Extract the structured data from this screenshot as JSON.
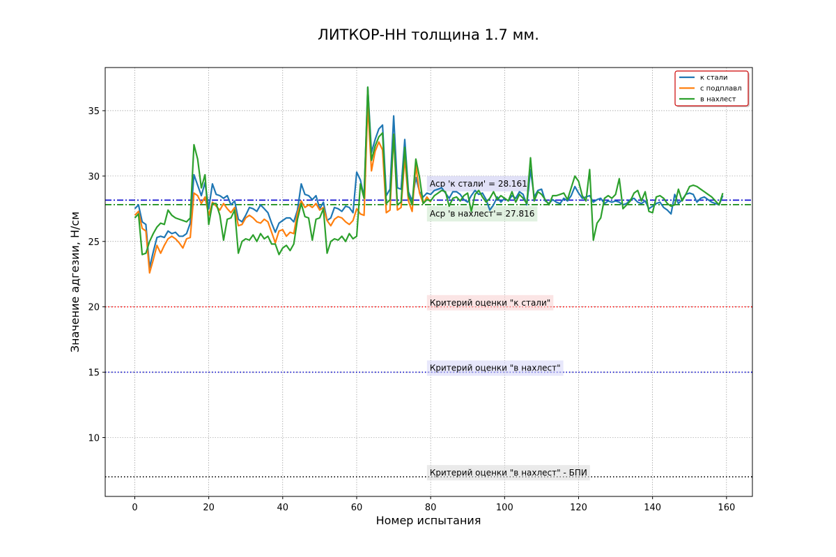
{
  "chart_data": {
    "type": "line",
    "title": "ЛИТКОР-НН толщина 1.7 мм.",
    "xlabel": "Номер испытания",
    "ylabel": "Значение адгезии, Н/см",
    "xlim": [
      -8,
      167
    ],
    "ylim": [
      5.5,
      38.3
    ],
    "xticks": [
      0,
      20,
      40,
      60,
      80,
      100,
      120,
      140,
      160
    ],
    "yticks": [
      10,
      15,
      20,
      25,
      30,
      35
    ],
    "grid": true,
    "legend_position": "top-right",
    "colors": {
      "k_stali": "#1f77b4",
      "s_podplavl": "#ff7f0e",
      "v_nakhlest": "#2ca02c",
      "legend_border": "#cc0000"
    },
    "series": [
      {
        "name": "к стали",
        "color": "#1f77b4",
        "x": [
          0,
          1,
          2,
          3,
          4,
          5,
          6,
          7,
          8,
          9,
          10,
          11,
          12,
          13,
          14,
          15,
          16,
          17,
          18,
          19,
          20,
          21,
          22,
          23,
          24,
          25,
          26,
          27,
          28,
          29,
          30,
          31,
          32,
          33,
          34,
          35,
          36,
          37,
          38,
          39,
          40,
          41,
          42,
          43,
          44,
          45,
          46,
          47,
          48,
          49,
          50,
          51,
          52,
          53,
          54,
          55,
          56,
          57,
          58,
          59,
          60,
          61,
          62,
          63,
          64,
          65,
          66,
          67,
          68,
          69,
          70,
          71,
          72,
          73,
          74,
          75,
          76,
          77,
          78,
          79,
          80,
          81,
          82,
          83,
          84,
          85,
          86,
          87,
          88,
          89,
          90,
          91,
          92,
          93,
          94,
          95,
          96,
          97,
          98,
          99,
          100,
          101,
          102,
          103,
          104,
          105,
          106,
          107,
          108,
          109,
          110,
          111,
          112,
          113,
          114,
          115,
          116,
          117,
          118,
          119,
          120,
          121,
          122,
          123,
          124,
          125,
          126,
          127,
          128,
          129,
          130,
          131,
          132,
          133,
          134,
          135,
          136,
          137,
          138,
          139,
          140,
          141,
          142,
          143,
          144,
          145,
          146,
          147,
          148,
          149,
          150,
          151,
          152,
          153,
          154,
          155,
          156,
          157,
          158,
          159
        ],
        "values": [
          27.5,
          27.8,
          26.5,
          26.3,
          23.0,
          24.2,
          25.3,
          25.4,
          25.3,
          25.8,
          25.6,
          25.7,
          25.4,
          25.4,
          25.6,
          26.4,
          30.1,
          29.3,
          28.5,
          29.5,
          27.5,
          29.4,
          28.6,
          28.5,
          28.3,
          28.5,
          27.8,
          28.1,
          26.7,
          26.5,
          27.0,
          27.6,
          27.5,
          27.3,
          27.8,
          27.5,
          27.2,
          26.4,
          25.7,
          26.4,
          26.6,
          26.8,
          26.8,
          26.5,
          27.4,
          29.4,
          28.6,
          28.5,
          28.2,
          28.5,
          27.5,
          28.0,
          26.6,
          26.8,
          27.6,
          27.5,
          27.3,
          27.7,
          27.6,
          27.2,
          30.3,
          29.7,
          28.4,
          36.8,
          31.8,
          32.8,
          33.6,
          33.9,
          28.5,
          29.0,
          34.6,
          29.1,
          29.0,
          32.8,
          28.8,
          28.1,
          29.9,
          28.8,
          28.4,
          28.7,
          28.6,
          28.9,
          29.0,
          29.1,
          28.7,
          28.3,
          28.8,
          28.8,
          28.6,
          28.2,
          28.0,
          28.5,
          28.9,
          28.6,
          28.7,
          28.2,
          27.4,
          27.8,
          28.4,
          28.0,
          28.3,
          28.1,
          28.5,
          28.3,
          28.8,
          28.6,
          27.8,
          30.5,
          28.4,
          28.9,
          29.0,
          28.1,
          27.9,
          28.2,
          28.0,
          27.9,
          28.3,
          28.1,
          28.5,
          29.2,
          28.7,
          28.3,
          28.4,
          28.5,
          28.0,
          28.2,
          28.3,
          27.9,
          28.1,
          28.0,
          28.1,
          28.0,
          27.8,
          27.9,
          28.2,
          28.3,
          28.0,
          27.9,
          28.1,
          27.5,
          27.7,
          27.9,
          28.0,
          27.6,
          27.4,
          27.1,
          28.6,
          27.9,
          28.2,
          28.6,
          28.7,
          28.6,
          28.0,
          28.3,
          28.4,
          28.2,
          28.0,
          27.9,
          27.8,
          28.5
        ]
      },
      {
        "name": "с подплавл",
        "color": "#ff7f0e",
        "x": [
          0,
          1,
          2,
          3,
          4,
          5,
          6,
          7,
          8,
          9,
          10,
          11,
          12,
          13,
          14,
          15,
          16,
          17,
          18,
          19,
          20,
          21,
          22,
          23,
          24,
          25,
          26,
          27,
          28,
          29,
          30,
          31,
          32,
          33,
          34,
          35,
          36,
          37,
          38,
          39,
          40,
          41,
          42,
          43,
          44,
          45,
          46,
          47,
          48,
          49,
          50,
          51,
          52,
          53,
          54,
          55,
          56,
          57,
          58,
          59,
          60,
          61,
          62,
          63,
          64,
          65,
          66,
          67,
          68,
          69,
          70,
          71,
          72,
          73,
          74,
          75,
          76,
          77,
          78,
          79,
          80
        ],
        "values": [
          27.0,
          27.3,
          26.0,
          25.8,
          22.6,
          23.6,
          24.7,
          24.1,
          24.7,
          25.2,
          25.4,
          25.2,
          24.9,
          24.5,
          25.2,
          25.3,
          28.7,
          28.5,
          27.9,
          28.4,
          27.0,
          28.0,
          27.7,
          27.4,
          27.9,
          27.5,
          27.2,
          27.6,
          26.2,
          26.3,
          26.8,
          27.0,
          26.8,
          26.5,
          26.4,
          26.7,
          26.5,
          25.7,
          24.9,
          25.8,
          25.9,
          25.4,
          25.7,
          25.6,
          27.2,
          28.1,
          27.6,
          27.8,
          27.6,
          27.9,
          27.4,
          27.6,
          26.6,
          26.2,
          26.7,
          26.9,
          26.8,
          26.5,
          26.3,
          26.6,
          27.5,
          27.1,
          27.0,
          35.5,
          30.4,
          31.9,
          32.6,
          32.0,
          27.2,
          27.4,
          33.2,
          27.4,
          27.6,
          31.4,
          28.1,
          27.3,
          30.8,
          28.7,
          27.9,
          28.4,
          28.0
        ]
      },
      {
        "name": "в нахлест",
        "color": "#2ca02c",
        "x": [
          0,
          1,
          2,
          3,
          4,
          5,
          6,
          7,
          8,
          9,
          10,
          11,
          12,
          13,
          14,
          15,
          16,
          17,
          18,
          19,
          20,
          21,
          22,
          23,
          24,
          25,
          26,
          27,
          28,
          29,
          30,
          31,
          32,
          33,
          34,
          35,
          36,
          37,
          38,
          39,
          40,
          41,
          42,
          43,
          44,
          45,
          46,
          47,
          48,
          49,
          50,
          51,
          52,
          53,
          54,
          55,
          56,
          57,
          58,
          59,
          60,
          61,
          62,
          63,
          64,
          65,
          66,
          67,
          68,
          69,
          70,
          71,
          72,
          73,
          74,
          75,
          76,
          77,
          78,
          79,
          80,
          81,
          82,
          83,
          84,
          85,
          86,
          87,
          88,
          89,
          90,
          91,
          92,
          93,
          94,
          95,
          96,
          97,
          98,
          99,
          100,
          101,
          102,
          103,
          104,
          105,
          106,
          107,
          108,
          109,
          110,
          111,
          112,
          113,
          114,
          115,
          116,
          117,
          118,
          119,
          120,
          121,
          122,
          123,
          124,
          125,
          126,
          127,
          128,
          129,
          130,
          131,
          132,
          133,
          134,
          135,
          136,
          137,
          138,
          139,
          140,
          141,
          142,
          143,
          144,
          145,
          146,
          147,
          148,
          149,
          150,
          151,
          152,
          153,
          154,
          155,
          156,
          157,
          158,
          159
        ],
        "values": [
          26.8,
          27.1,
          24.0,
          24.1,
          25.0,
          25.6,
          26.1,
          26.4,
          26.3,
          27.4,
          27.0,
          26.8,
          26.7,
          26.6,
          26.5,
          26.8,
          32.4,
          31.3,
          29.1,
          30.1,
          26.3,
          27.9,
          27.9,
          27.0,
          25.1,
          26.7,
          26.8,
          27.4,
          24.1,
          25.0,
          25.2,
          25.1,
          25.5,
          25.0,
          25.6,
          25.2,
          25.4,
          24.8,
          24.8,
          24.0,
          24.5,
          24.7,
          24.3,
          24.8,
          26.7,
          27.9,
          26.9,
          26.8,
          25.1,
          26.7,
          26.8,
          27.5,
          24.1,
          25.0,
          25.2,
          25.1,
          25.4,
          25.0,
          25.6,
          25.2,
          25.4,
          29.4,
          28.3,
          36.8,
          31.2,
          32.3,
          33.0,
          33.3,
          27.9,
          28.2,
          33.2,
          27.8,
          28.0,
          32.2,
          28.5,
          27.8,
          31.3,
          29.9,
          27.9,
          28.2,
          28.1,
          28.5,
          28.7,
          28.9,
          28.8,
          27.7,
          28.3,
          28.4,
          28.1,
          28.5,
          28.7,
          27.3,
          28.6,
          28.9,
          28.4,
          28.0,
          28.3,
          28.8,
          28.2,
          28.5,
          28.3,
          28.1,
          28.8,
          28.0,
          28.6,
          28.3,
          27.9,
          31.4,
          28.1,
          28.8,
          28.6,
          28.2,
          27.8,
          28.5,
          28.5,
          28.6,
          28.7,
          28.2,
          29.1,
          30.0,
          29.6,
          28.5,
          28.1,
          30.5,
          25.1,
          26.4,
          26.8,
          28.3,
          28.5,
          28.3,
          28.6,
          29.8,
          27.5,
          27.8,
          28.1,
          28.7,
          28.9,
          28.1,
          28.8,
          27.3,
          27.2,
          28.4,
          28.5,
          28.3,
          27.9,
          27.7,
          27.8,
          29.0,
          28.1,
          28.6,
          29.2,
          29.3,
          29.2,
          29.0,
          28.8,
          28.6,
          28.4,
          28.1,
          27.8,
          28.7
        ]
      }
    ],
    "hlines": [
      {
        "y": 28.161,
        "color": "#0000cc",
        "style": "dashdot"
      },
      {
        "y": 27.816,
        "color": "#008000",
        "style": "dashdot"
      },
      {
        "y": 20,
        "color": "#ff0000",
        "style": "dotted"
      },
      {
        "y": 15,
        "color": "#0000cc",
        "style": "dotted"
      },
      {
        "y": 7,
        "color": "#000000",
        "style": "dotted"
      }
    ],
    "annotations": [
      {
        "text": "Aср 'к стали' = 28.161",
        "x": 79,
        "y": 29.2,
        "bg": "#c8c8f0"
      },
      {
        "text": "Aср 'в нахлест'= 27.816",
        "x": 79,
        "y": 26.9,
        "bg": "#c8e6c8"
      },
      {
        "text": "Критерий оценки \"к стали\"",
        "x": 79,
        "y": 20.1,
        "bg": "#f8d0d0"
      },
      {
        "text": "Критерий оценки \"в нахлест\"",
        "x": 79,
        "y": 15.1,
        "bg": "#d4d4f8"
      },
      {
        "text": "Критерий оценки \"в нахлест\" - БПИ",
        "x": 79,
        "y": 7.1,
        "bg": "#d8d8d8"
      }
    ]
  }
}
